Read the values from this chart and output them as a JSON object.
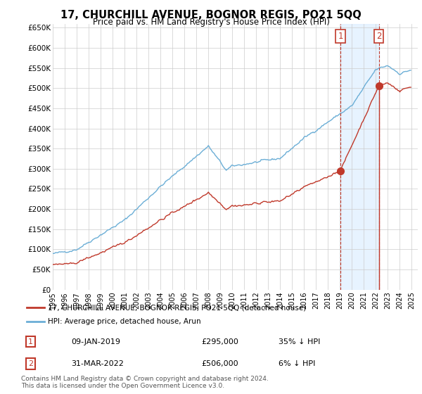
{
  "title": "17, CHURCHILL AVENUE, BOGNOR REGIS, PO21 5QQ",
  "subtitle": "Price paid vs. HM Land Registry's House Price Index (HPI)",
  "ylabel_ticks": [
    "£0",
    "£50K",
    "£100K",
    "£150K",
    "£200K",
    "£250K",
    "£300K",
    "£350K",
    "£400K",
    "£450K",
    "£500K",
    "£550K",
    "£600K",
    "£650K"
  ],
  "ytick_values": [
    0,
    50000,
    100000,
    150000,
    200000,
    250000,
    300000,
    350000,
    400000,
    450000,
    500000,
    550000,
    600000,
    650000
  ],
  "hpi_color": "#6baed6",
  "price_color": "#c0392b",
  "vline_color": "#c0392b",
  "shade_color": "#ddeeff",
  "annotation_box_color": "#c0392b",
  "legend_label_red": "17, CHURCHILL AVENUE, BOGNOR REGIS, PO21 5QQ (detached house)",
  "legend_label_blue": "HPI: Average price, detached house, Arun",
  "annotation1_label": "1",
  "annotation1_date": "09-JAN-2019",
  "annotation1_price": "£295,000",
  "annotation1_hpi": "35% ↓ HPI",
  "annotation2_label": "2",
  "annotation2_date": "31-MAR-2022",
  "annotation2_price": "£506,000",
  "annotation2_hpi": "6% ↓ HPI",
  "footer": "Contains HM Land Registry data © Crown copyright and database right 2024.\nThis data is licensed under the Open Government Licence v3.0.",
  "background_color": "#ffffff",
  "grid_color": "#cccccc",
  "sale1_year": 2019.033,
  "sale1_price": 295000,
  "sale2_year": 2022.25,
  "sale2_price": 506000,
  "xmin": 1995,
  "xmax": 2025,
  "ymin": 0,
  "ymax": 650000
}
